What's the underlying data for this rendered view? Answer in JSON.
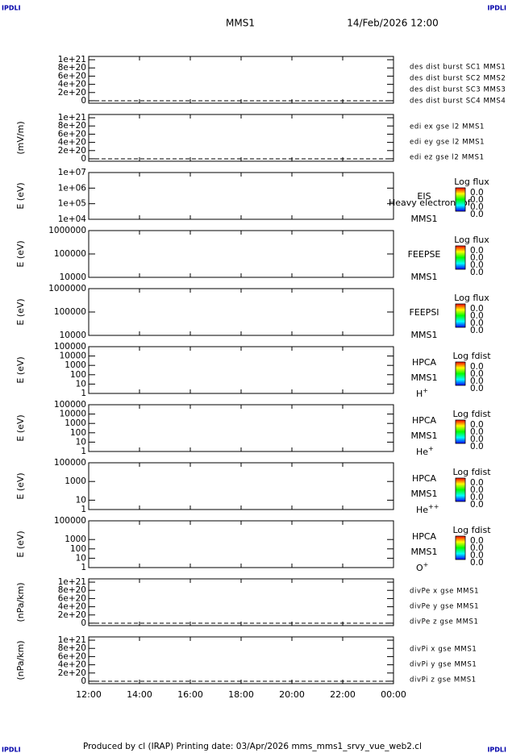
{
  "header": {
    "logo_left": "IPDLI",
    "logo_right": "IPDLI",
    "spacecraft": "MMS1",
    "date": "14/Feb/2026 12:00"
  },
  "panels": [
    {
      "scale": "linear",
      "ylim": [
        -6e+19,
        1.08e+21
      ],
      "yticks": [
        {
          "value": 1e+21,
          "label": "1e+21"
        },
        {
          "value": 8e+20,
          "label": "8e+20"
        },
        {
          "value": 6e+20,
          "label": "6e+20"
        },
        {
          "value": 4e+20,
          "label": "4e+20"
        },
        {
          "value": 2e+20,
          "label": "2e+20"
        },
        0
      ],
      "labels": [
        {
          "text": "des dist burst SC1 MMS1",
          "color": "#0000cc"
        },
        {
          "text": "des dist burst SC2 MMS2",
          "color": "#cc00cc"
        },
        {
          "text": "des dist burst SC3 MMS3",
          "color": "#dd0000"
        },
        {
          "text": "des dist burst SC4 MMS4",
          "color": "#00cc00"
        }
      ]
    },
    {
      "scale": "linear",
      "ylabel": "(mV/m)",
      "ylim": [
        -6e+19,
        1.08e+21
      ],
      "yticks": [
        {
          "value": 1e+21,
          "label": "1e+21"
        },
        {
          "value": 8e+20,
          "label": "8e+20"
        },
        {
          "value": 6e+20,
          "label": "6e+20"
        },
        {
          "value": 4e+20,
          "label": "4e+20"
        },
        {
          "value": 2e+20,
          "label": "2e+20"
        },
        0
      ],
      "labels": [
        {
          "text": "edi ex gse l2 MMS1",
          "color": "#dd0000"
        },
        {
          "text": "edi ey gse l2 MMS1",
          "color": "#00cc00"
        },
        {
          "text": "edi ez gse l2 MMS1",
          "color": "#0000cc"
        }
      ]
    },
    {
      "scale": "log",
      "ylabel": "E (eV)",
      "ylim": [
        10000.0,
        10000000.0
      ],
      "yticks": [
        {
          "value": 10000000.0,
          "label": "1e+07"
        },
        {
          "value": 1000000.0,
          "label": "1e+06"
        },
        {
          "value": 100000.0,
          "label": "1e+05"
        },
        {
          "value": 10000.0,
          "label": "1e+04"
        }
      ],
      "instrument": {
        "lines": [
          "EIS",
          "MMS1"
        ],
        "overlay": "Heavy electron tof"
      },
      "colorbar": {
        "title": "Log flux",
        "labels": [
          "0.0",
          "0.0",
          "0.0",
          "0.0"
        ]
      }
    },
    {
      "scale": "log",
      "ylabel": "E (eV)",
      "ylim": [
        10000.0,
        1000000.0
      ],
      "yticks": [
        1000000,
        100000,
        10000
      ],
      "instrument": {
        "lines": [
          "FEEPSE",
          "MMS1"
        ]
      },
      "colorbar": {
        "title": "Log flux",
        "labels": [
          "0.0",
          "0.0",
          "0.0",
          "0.0"
        ]
      }
    },
    {
      "scale": "log",
      "ylabel": "E (eV)",
      "ylim": [
        10000.0,
        1000000.0
      ],
      "yticks": [
        1000000,
        100000,
        10000
      ],
      "instrument": {
        "lines": [
          "FEEPSI",
          "MMS1"
        ]
      },
      "colorbar": {
        "title": "Log flux",
        "labels": [
          "0.0",
          "0.0",
          "0.0",
          "0.0"
        ]
      }
    },
    {
      "scale": "log",
      "ylabel": "E (eV)",
      "ylim": [
        1,
        100000.0
      ],
      "yticks": [
        100000,
        10000,
        1000,
        100,
        10,
        1
      ],
      "instrument": {
        "lines": [
          "HPCA",
          "MMS1"
        ],
        "species": "H",
        "charge": "+"
      },
      "colorbar": {
        "title": "Log fdist",
        "labels": [
          "0.0",
          "0.0",
          "0.0",
          "0.0"
        ]
      }
    },
    {
      "scale": "log",
      "ylabel": "E (eV)",
      "ylim": [
        1,
        100000.0
      ],
      "yticks": [
        100000,
        10000,
        1000,
        100,
        10,
        1
      ],
      "instrument": {
        "lines": [
          "HPCA",
          "MMS1"
        ],
        "species": "He",
        "charge": "+"
      },
      "colorbar": {
        "title": "Log fdist",
        "labels": [
          "0.0",
          "0.0",
          "0.0",
          "0.0"
        ]
      }
    },
    {
      "scale": "log",
      "ylabel": "E (eV)",
      "ylim": [
        1,
        100000.0
      ],
      "yticks": [
        100000,
        1000,
        10,
        1
      ],
      "instrument": {
        "lines": [
          "HPCA",
          "MMS1"
        ],
        "species": "He",
        "charge": "++"
      },
      "colorbar": {
        "title": "Log fdist",
        "labels": [
          "0.0",
          "0.0",
          "0.0",
          "0.0"
        ]
      }
    },
    {
      "scale": "log",
      "ylabel": "E (eV)",
      "ylim": [
        1,
        100000.0
      ],
      "yticks": [
        100000,
        1000,
        100,
        10,
        1
      ],
      "instrument": {
        "lines": [
          "HPCA",
          "MMS1"
        ],
        "species": "O",
        "charge": "+"
      },
      "colorbar": {
        "title": "Log fdist",
        "labels": [
          "0.0",
          "0.0",
          "0.0",
          "0.0"
        ]
      }
    },
    {
      "scale": "linear",
      "ylabel": "(nPa/km)",
      "ylim": [
        -6e+19,
        1.08e+21
      ],
      "yticks": [
        {
          "value": 1e+21,
          "label": "1e+21"
        },
        {
          "value": 8e+20,
          "label": "8e+20"
        },
        {
          "value": 6e+20,
          "label": "6e+20"
        },
        {
          "value": 4e+20,
          "label": "4e+20"
        },
        {
          "value": 2e+20,
          "label": "2e+20"
        },
        0
      ],
      "labels": [
        {
          "text": "divPe x gse MMS1",
          "color": "#dd0000"
        },
        {
          "text": "divPe y gse MMS1",
          "color": "#00cc00"
        },
        {
          "text": "divPe z gse MMS1",
          "color": "#0000cc"
        }
      ]
    },
    {
      "scale": "linear",
      "ylabel": "(nPa/km)",
      "ylim": [
        -6e+19,
        1.08e+21
      ],
      "yticks": [
        {
          "value": 1e+21,
          "label": "1e+21"
        },
        {
          "value": 8e+20,
          "label": "8e+20"
        },
        {
          "value": 6e+20,
          "label": "6e+20"
        },
        {
          "value": 4e+20,
          "label": "4e+20"
        },
        {
          "value": 2e+20,
          "label": "2e+20"
        },
        0
      ],
      "labels": [
        {
          "text": "divPi x gse MMS1",
          "color": "#dd0000"
        },
        {
          "text": "divPi y gse MMS1",
          "color": "#00cc00"
        },
        {
          "text": "divPi z gse MMS1",
          "color": "#0000cc"
        }
      ]
    }
  ],
  "xticks": [
    "12:00",
    "14:00",
    "16:00",
    "18:00",
    "20:00",
    "22:00",
    "00:00"
  ],
  "footer": {
    "text": "Produced by cl (IRAP)   Printing date: 03/Apr/2026   mms_mms1_srvy_vue_web2.cl",
    "logo_left": "IPDLI",
    "logo_right": "IPDLI"
  }
}
